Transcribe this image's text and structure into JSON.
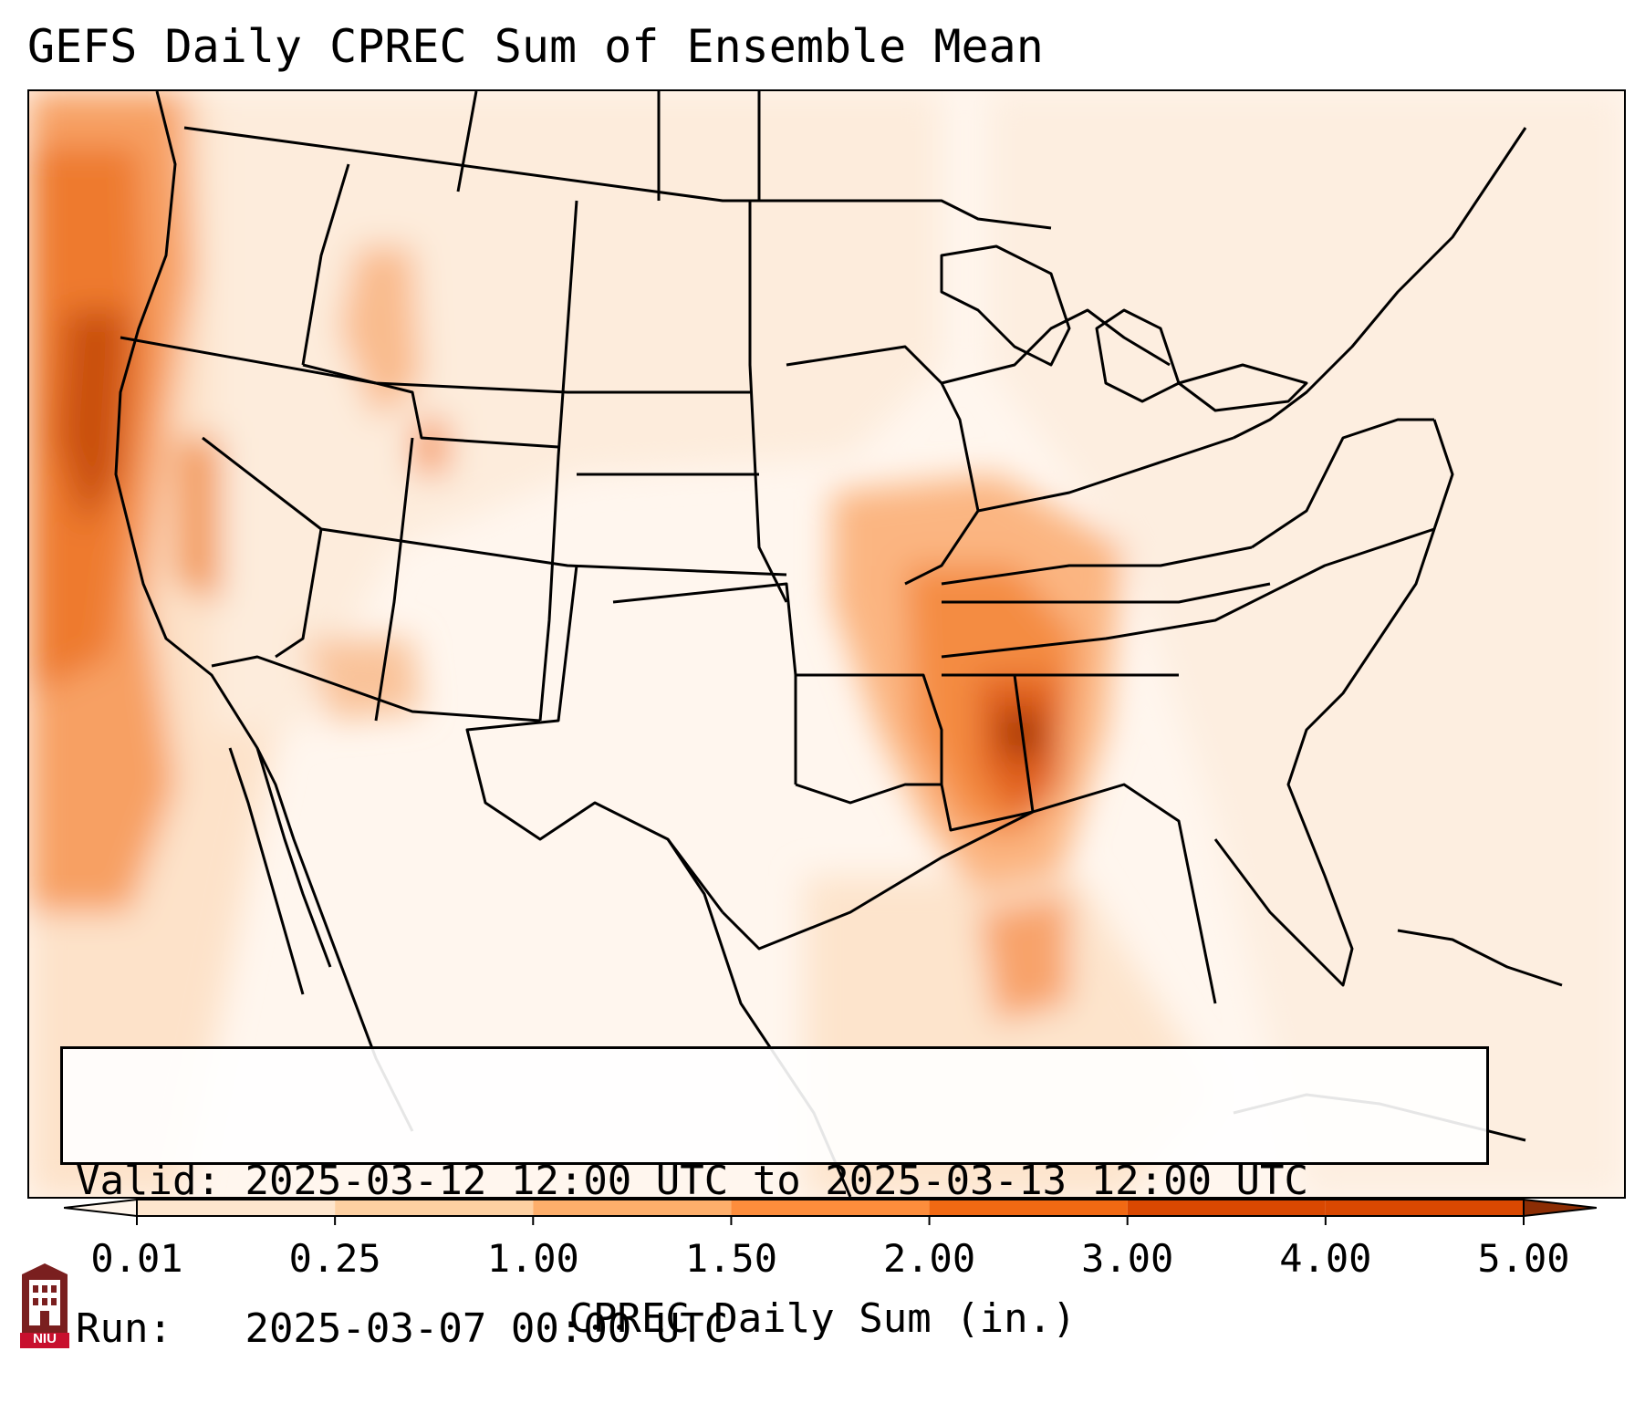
{
  "title": "GEFS Daily CPREC Sum of Ensemble Mean",
  "valid_box": {
    "line1_label": "Valid:",
    "line1_value": "2025-03-12 12:00 UTC to 2025-03-13 12:00 UTC",
    "line2_label": "Run:",
    "line2_value": "2025-03-07 00:00 UTC"
  },
  "colorbar": {
    "label": "CPREC Daily Sum (in.)",
    "ticks": [
      "0.01",
      "0.25",
      "1.00",
      "1.50",
      "2.00",
      "3.00",
      "4.00",
      "5.00"
    ],
    "colors": [
      "#fff5eb",
      "#fee6ce",
      "#fdd0a2",
      "#fdae6b",
      "#fd8d3c",
      "#f16913",
      "#d94801",
      "#8c2d04"
    ],
    "extend": "both"
  },
  "logo": {
    "text": "NIU",
    "colors": {
      "shield": "#7a1f1f",
      "text_bg": "#c8102e"
    }
  },
  "map_colors": {
    "background": "#fff8f2",
    "light": "#fde9d6",
    "medium": "#fdbf8a",
    "strong": "#f9924a",
    "heavy": "#ea6a1c",
    "extreme": "#b13d05",
    "lines": "#000000"
  }
}
